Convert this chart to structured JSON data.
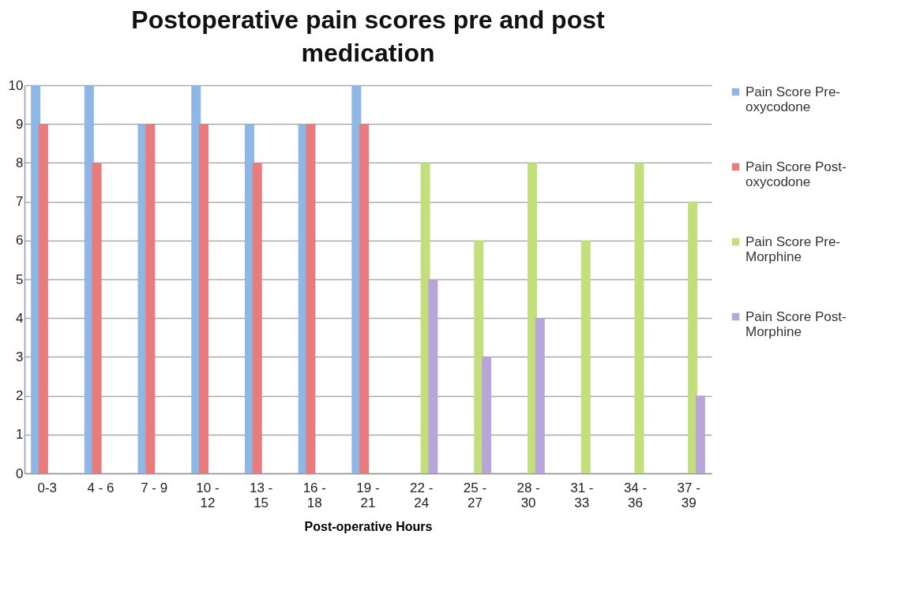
{
  "chart_data": {
    "type": "bar",
    "title": "Postoperative pain scores pre and post medication",
    "xlabel": "Post-operative Hours",
    "categories": [
      "0-3",
      "4 - 6",
      "7 - 9",
      "10 - 12",
      "13 - 15",
      "16 - 18",
      "19 - 21",
      "22 - 24",
      "25 - 27",
      "28 - 30",
      "31 - 33",
      "34 - 36",
      "37 - 39"
    ],
    "series": [
      {
        "name": "Pain Score Pre-oxycodone",
        "color": "#8fb7e6",
        "values": [
          10,
          10,
          9,
          10,
          9,
          9,
          10,
          null,
          null,
          null,
          null,
          null,
          null
        ]
      },
      {
        "name": "Pain Score Post-oxycodone",
        "color": "#e97b7c",
        "values": [
          9,
          8,
          9,
          9,
          8,
          9,
          9,
          null,
          null,
          null,
          null,
          null,
          null
        ]
      },
      {
        "name": "Pain Score Pre-Morphine",
        "color": "#c2df7c",
        "values": [
          null,
          null,
          null,
          null,
          null,
          null,
          null,
          8,
          6,
          8,
          6,
          8,
          7
        ]
      },
      {
        "name": "Pain Score Post-Morphine",
        "color": "#b8a5d9",
        "values": [
          null,
          null,
          null,
          null,
          null,
          null,
          null,
          5,
          3,
          4,
          null,
          null,
          2
        ]
      }
    ],
    "ylim": [
      0,
      10
    ],
    "yticks": [
      0,
      1,
      2,
      3,
      4,
      5,
      6,
      7,
      8,
      9,
      10
    ],
    "grid": "y",
    "legend": "right"
  }
}
